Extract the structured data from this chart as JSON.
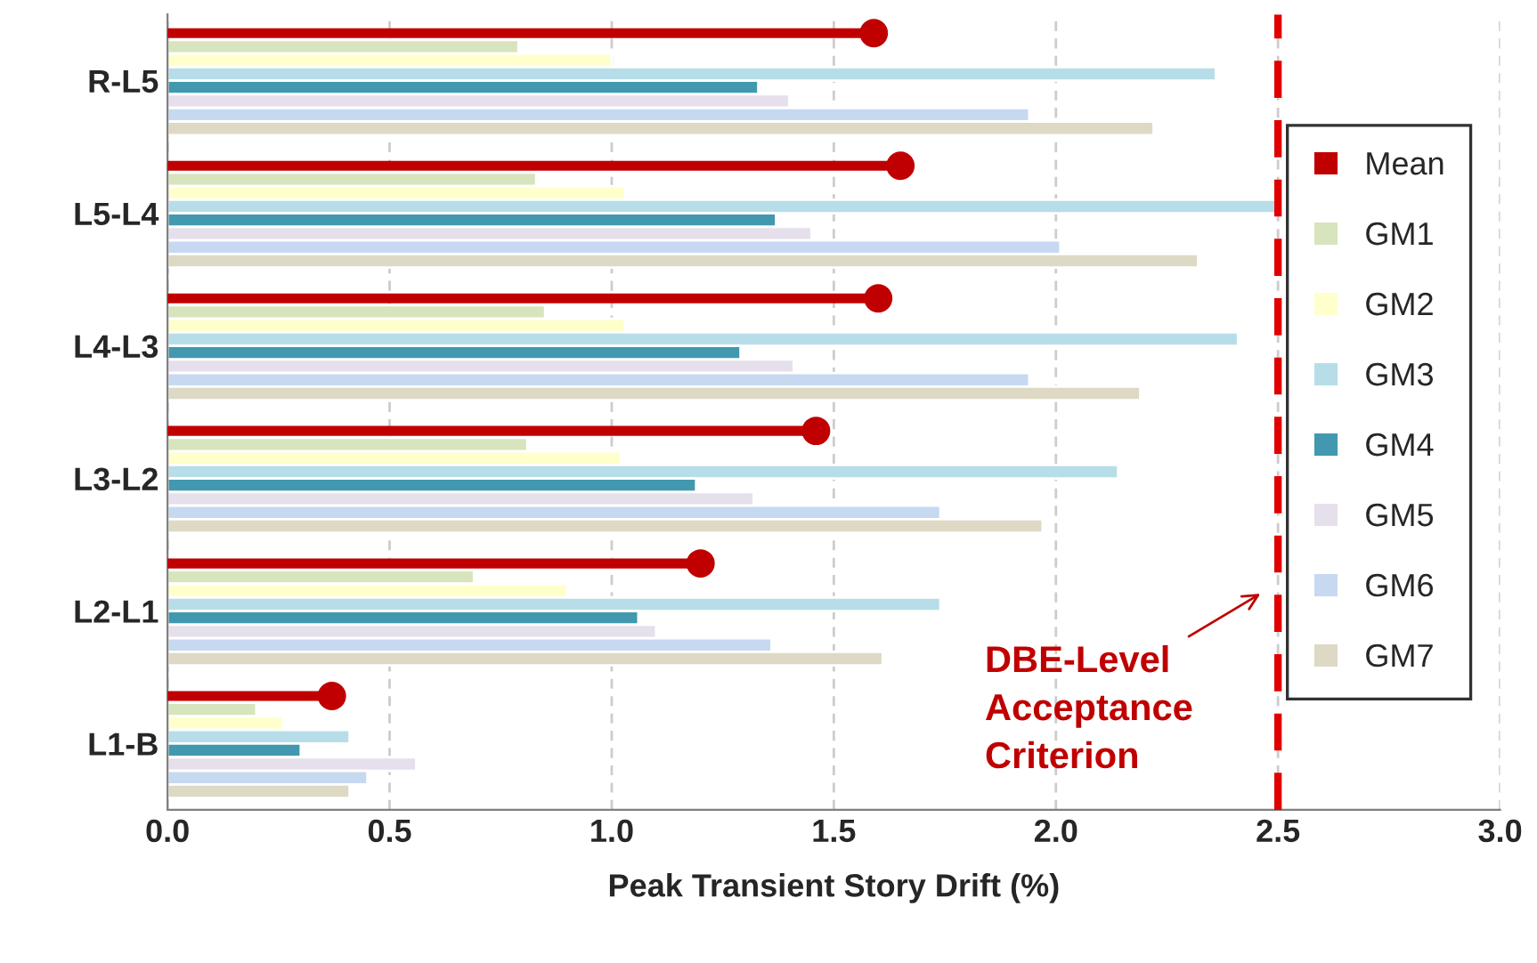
{
  "chart_data": {
    "type": "bar",
    "orientation": "horizontal",
    "xlabel": "Peak Transient Story Drift (%)",
    "categories": [
      "R-L5",
      "L5-L4",
      "L4-L3",
      "L3-L2",
      "L2-L1",
      "L1-B"
    ],
    "series": [
      {
        "name": "Mean",
        "type": "lollipop",
        "color": "#c00000",
        "values": [
          1.59,
          1.65,
          1.6,
          1.46,
          1.2,
          0.37
        ]
      },
      {
        "name": "GM1",
        "color": "#d7e4bd",
        "values": [
          0.79,
          0.83,
          0.85,
          0.81,
          0.69,
          0.2
        ]
      },
      {
        "name": "GM2",
        "color": "#ffffcc",
        "values": [
          1.0,
          1.03,
          1.03,
          1.02,
          0.9,
          0.26
        ]
      },
      {
        "name": "GM3",
        "color": "#b7dee8",
        "values": [
          2.36,
          2.5,
          2.41,
          2.14,
          1.74,
          0.41
        ]
      },
      {
        "name": "GM4",
        "color": "#4198af",
        "values": [
          1.33,
          1.37,
          1.29,
          1.19,
          1.06,
          0.3
        ]
      },
      {
        "name": "GM5",
        "color": "#e6e0ec",
        "values": [
          1.4,
          1.45,
          1.41,
          1.32,
          1.1,
          0.56
        ]
      },
      {
        "name": "GM6",
        "color": "#c6d9f1",
        "values": [
          1.94,
          2.01,
          1.94,
          1.74,
          1.36,
          0.45
        ]
      },
      {
        "name": "GM7",
        "color": "#ddd9c4",
        "values": [
          2.22,
          2.32,
          2.19,
          1.97,
          1.61,
          0.41
        ]
      }
    ],
    "xlim": [
      0,
      3.0
    ],
    "xticks": [
      {
        "value": 0,
        "label": "0.0"
      },
      {
        "value": 0.5,
        "label": "0.5"
      },
      {
        "value": 1.0,
        "label": "1.0"
      },
      {
        "value": 1.5,
        "label": "1.5"
      },
      {
        "value": 2.0,
        "label": "2.0"
      },
      {
        "value": 2.5,
        "label": "2.5"
      },
      {
        "value": 3.0,
        "label": "3.0"
      }
    ],
    "ref_lines": [
      {
        "axis": "x",
        "value": 2.5,
        "label": "DBE-Level\nAcceptance\nCriterion",
        "color": "#e00000",
        "line_style": "dashed"
      }
    ],
    "grid": "x",
    "legend": "right"
  }
}
